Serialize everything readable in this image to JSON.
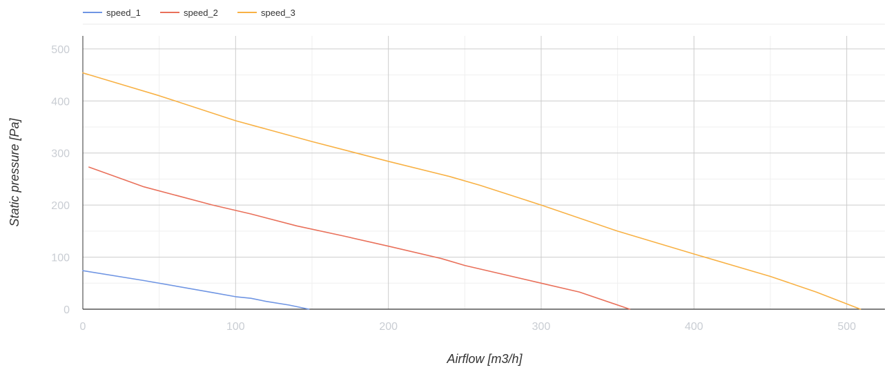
{
  "chart_data": {
    "type": "line",
    "xlabel": "Airflow [m3/h]",
    "ylabel": "Static pressure [Pa]",
    "xlim": [
      0,
      525
    ],
    "ylim": [
      0,
      525
    ],
    "x_ticks": [
      0,
      100,
      200,
      300,
      400,
      500
    ],
    "y_ticks": [
      0,
      100,
      200,
      300,
      400,
      500
    ],
    "x_tick_labels": [
      "0",
      "100",
      "200",
      "300",
      "400",
      "500"
    ],
    "y_tick_labels": [
      "0",
      "100",
      "200",
      "300",
      "400",
      "500"
    ],
    "grid": true,
    "legend_position": "top-left",
    "series": [
      {
        "name": "speed_1",
        "color": "#6f95e3",
        "x": [
          0,
          40,
          85,
          100,
          110,
          120,
          135,
          148
        ],
        "y": [
          74,
          55,
          32,
          24,
          21,
          15,
          8,
          0
        ]
      },
      {
        "name": "speed_2",
        "color": "#e9705a",
        "x": [
          4,
          40,
          85,
          110,
          140,
          170,
          200,
          235,
          250,
          300,
          325,
          358
        ],
        "y": [
          273,
          235,
          200,
          183,
          160,
          141,
          121,
          97,
          84,
          50,
          33,
          0
        ]
      },
      {
        "name": "speed_3",
        "color": "#f8b144",
        "x": [
          0,
          50,
          100,
          150,
          200,
          240,
          260,
          300,
          350,
          400,
          450,
          480,
          509
        ],
        "y": [
          454,
          410,
          362,
          322,
          284,
          255,
          238,
          200,
          150,
          106,
          63,
          33,
          0
        ]
      }
    ]
  }
}
